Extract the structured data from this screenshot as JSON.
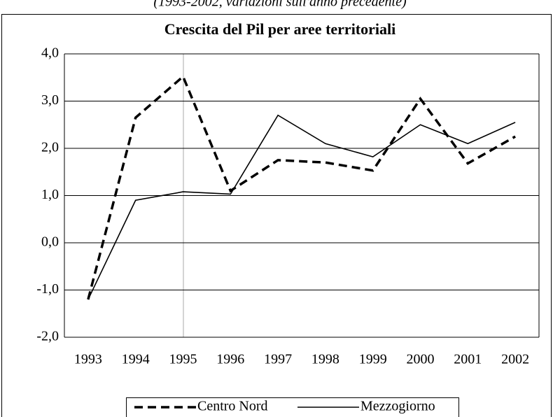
{
  "chart_data": {
    "type": "line",
    "title": "Crescita del Pil per aree territoriali",
    "subtitle": "(1993-2002, variazioni sull'anno precedente)",
    "categories": [
      "1993",
      "1994",
      "1995",
      "1996",
      "1997",
      "1998",
      "1999",
      "2000",
      "2001",
      "2002"
    ],
    "series": [
      {
        "name": "Centro Nord",
        "color": "#000000",
        "style": "dashed",
        "values": [
          -1.2,
          2.65,
          3.52,
          1.1,
          1.75,
          1.7,
          1.53,
          3.05,
          1.68,
          2.25
        ]
      },
      {
        "name": "Mezzogiorno",
        "color": "#000000",
        "style": "solid",
        "values": [
          -1.2,
          0.9,
          1.08,
          1.03,
          2.7,
          2.1,
          1.82,
          2.5,
          2.1,
          2.55
        ]
      }
    ],
    "ylim": [
      -2,
      4
    ],
    "yticks": [
      {
        "value": -2,
        "label": "-2,0"
      },
      {
        "value": -1,
        "label": "-1,0"
      },
      {
        "value": 0,
        "label": "0,0"
      },
      {
        "value": 1,
        "label": "1,0"
      },
      {
        "value": 2,
        "label": "2,0"
      },
      {
        "value": 3,
        "label": "3,0"
      },
      {
        "value": 4,
        "label": "4,0"
      }
    ],
    "grid": true,
    "legend": "bottom"
  }
}
